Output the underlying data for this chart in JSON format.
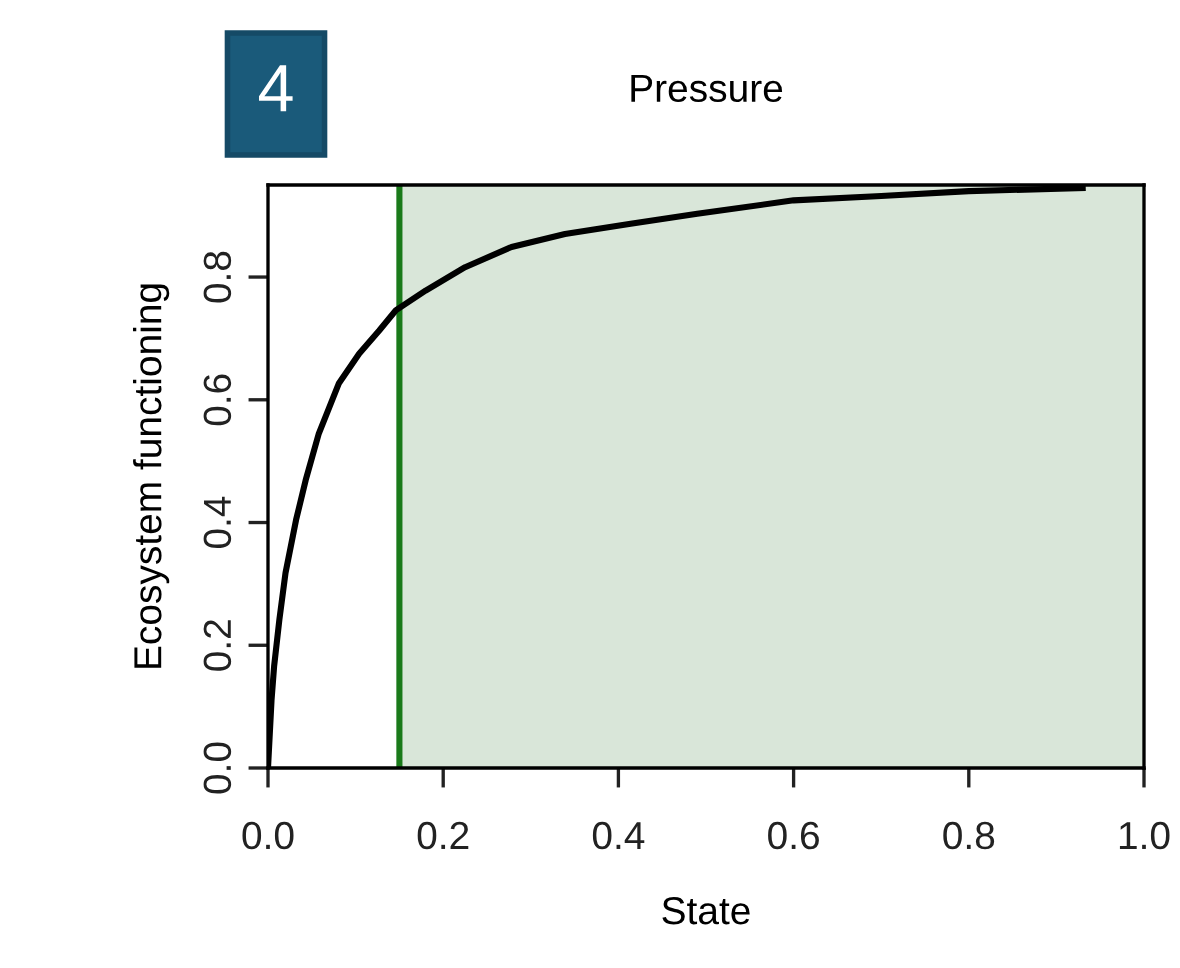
{
  "chart_data": {
    "type": "line",
    "title": "Pressure",
    "xlabel": "State",
    "ylabel": "Ecosystem functioning",
    "annotations": [
      "4"
    ],
    "x": [
      0,
      0.004,
      0.007,
      0.013,
      0.02,
      0.032,
      0.043,
      0.058,
      0.081,
      0.104,
      0.127,
      0.146,
      0.18,
      0.225,
      0.278,
      0.339,
      0.414,
      0.49,
      0.6,
      0.7,
      0.8,
      0.93
    ],
    "series": [
      {
        "color": "#000000",
        "values": [
          0,
          0.11,
          0.166,
          0.242,
          0.318,
          0.404,
          0.469,
          0.545,
          0.627,
          0.675,
          0.713,
          0.746,
          0.778,
          0.816,
          0.849,
          0.87,
          0.887,
          0.903,
          0.925,
          0.932,
          0.94,
          0.945
        ]
      }
    ],
    "ref_lines": [
      {
        "axis": "x",
        "value": 0.15,
        "color": "#1a7a1a"
      }
    ],
    "bands": [
      {
        "axis": "x",
        "from": 0.15,
        "to": 1.0,
        "color": "#d9e6d9"
      }
    ],
    "xlim": [
      0,
      1.0
    ],
    "ylim": [
      0,
      0.95
    ],
    "xticks": [
      {
        "value": 0,
        "label": "0.0"
      },
      0.2,
      0.4,
      0.6,
      0.8,
      {
        "value": 1.0,
        "label": "1.0"
      }
    ],
    "yticks": [
      {
        "value": 0,
        "label": "0.0"
      },
      0.2,
      0.4,
      0.6,
      0.8
    ],
    "grid": false,
    "legend": false,
    "line_style": "solid",
    "marker": "none"
  }
}
